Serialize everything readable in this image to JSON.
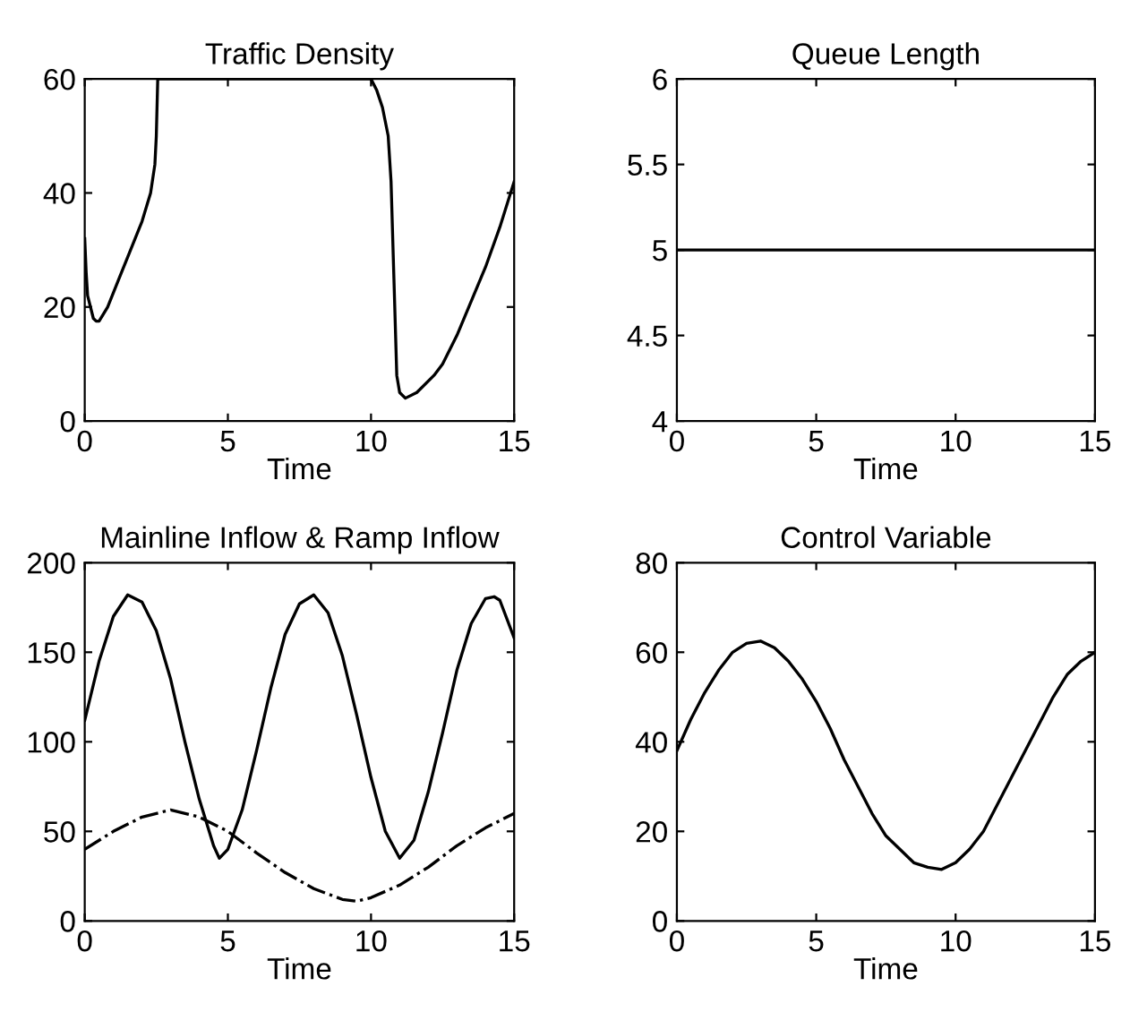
{
  "chart_data": [
    {
      "type": "line",
      "title": "Traffic Density",
      "xlabel": "Time",
      "xlim": [
        0,
        15
      ],
      "xticks": [
        0,
        5,
        10,
        15
      ],
      "ylim": [
        0,
        60
      ],
      "yticks": [
        0,
        20,
        40,
        60
      ],
      "grid": false,
      "line_style": "solid",
      "series": [
        {
          "color": "#000000",
          "x": [
            0,
            0.05,
            0.1,
            0.2,
            0.3,
            0.4,
            0.5,
            0.8,
            1.2,
            1.6,
            2.0,
            2.3,
            2.45,
            2.5,
            2.55,
            4,
            6,
            8,
            10.0,
            10.2,
            10.4,
            10.6,
            10.7,
            10.8,
            10.9,
            11.0,
            11.2,
            11.6,
            12.2,
            12.5,
            13,
            13.5,
            14,
            14.5,
            15
          ],
          "values": [
            32,
            26,
            22,
            20,
            18,
            17.5,
            17.5,
            20,
            25,
            30,
            35,
            40,
            45,
            50,
            60,
            60,
            60,
            60,
            60,
            58,
            55,
            50,
            42,
            25,
            8,
            5,
            4,
            5,
            8,
            10,
            15,
            21,
            27,
            34,
            42
          ]
        }
      ]
    },
    {
      "type": "line",
      "title": "Queue Length",
      "xlabel": "Time",
      "xlim": [
        0,
        15
      ],
      "xticks": [
        0,
        5,
        10,
        15
      ],
      "ylim": [
        4,
        6
      ],
      "yticks": [
        4,
        4.5,
        5,
        5.5,
        6
      ],
      "grid": false,
      "line_style": "solid",
      "series": [
        {
          "color": "#000000",
          "x": [
            0,
            15
          ],
          "values": [
            5,
            5
          ]
        }
      ]
    },
    {
      "type": "line",
      "title": "Mainline Inflow & Ramp Inflow",
      "xlabel": "Time",
      "xlim": [
        0,
        15
      ],
      "xticks": [
        0,
        5,
        10,
        15
      ],
      "ylim": [
        0,
        200
      ],
      "yticks": [
        0,
        50,
        100,
        150,
        200
      ],
      "grid": false,
      "series": [
        {
          "color": "#000000",
          "line_style": "solid",
          "x": [
            0,
            0.5,
            1,
            1.5,
            2,
            2.5,
            3,
            3.5,
            4,
            4.5,
            4.7,
            5,
            5.5,
            6,
            6.5,
            7,
            7.5,
            8,
            8.5,
            9,
            9.5,
            10,
            10.5,
            11,
            11.5,
            12,
            12.5,
            13,
            13.5,
            14,
            14.3,
            14.5,
            15
          ],
          "values": [
            112,
            145,
            170,
            182,
            178,
            162,
            135,
            100,
            68,
            42,
            35,
            40,
            62,
            95,
            130,
            160,
            177,
            182,
            172,
            148,
            115,
            80,
            50,
            35,
            45,
            72,
            105,
            140,
            166,
            180,
            181,
            179,
            158
          ]
        },
        {
          "color": "#000000",
          "line_style": "dashdot",
          "x": [
            0,
            1,
            2,
            3,
            4,
            5,
            6,
            7,
            8,
            9,
            9.5,
            10,
            11,
            12,
            13,
            14,
            15
          ],
          "values": [
            40,
            50,
            58,
            62,
            58,
            50,
            38,
            27,
            18,
            12,
            11,
            13,
            20,
            30,
            42,
            52,
            60
          ]
        }
      ]
    },
    {
      "type": "line",
      "title": "Control Variable",
      "xlabel": "Time",
      "xlim": [
        0,
        15
      ],
      "xticks": [
        0,
        5,
        10,
        15
      ],
      "ylim": [
        0,
        80
      ],
      "yticks": [
        0,
        20,
        40,
        60,
        80
      ],
      "grid": false,
      "line_style": "solid",
      "series": [
        {
          "color": "#000000",
          "x": [
            0,
            0.5,
            1,
            1.5,
            2,
            2.5,
            3,
            3.5,
            4,
            4.5,
            5,
            5.5,
            6,
            6.5,
            7,
            7.5,
            8,
            8.5,
            9,
            9.5,
            10,
            10.5,
            11,
            11.5,
            12,
            12.5,
            13,
            13.5,
            14,
            14.5,
            15
          ],
          "values": [
            38,
            45,
            51,
            56,
            60,
            62,
            62.5,
            61,
            58,
            54,
            49,
            43,
            36,
            30,
            24,
            19,
            16,
            13,
            12,
            11.5,
            13,
            16,
            20,
            26,
            32,
            38,
            44,
            50,
            55,
            58,
            60
          ]
        }
      ]
    }
  ]
}
